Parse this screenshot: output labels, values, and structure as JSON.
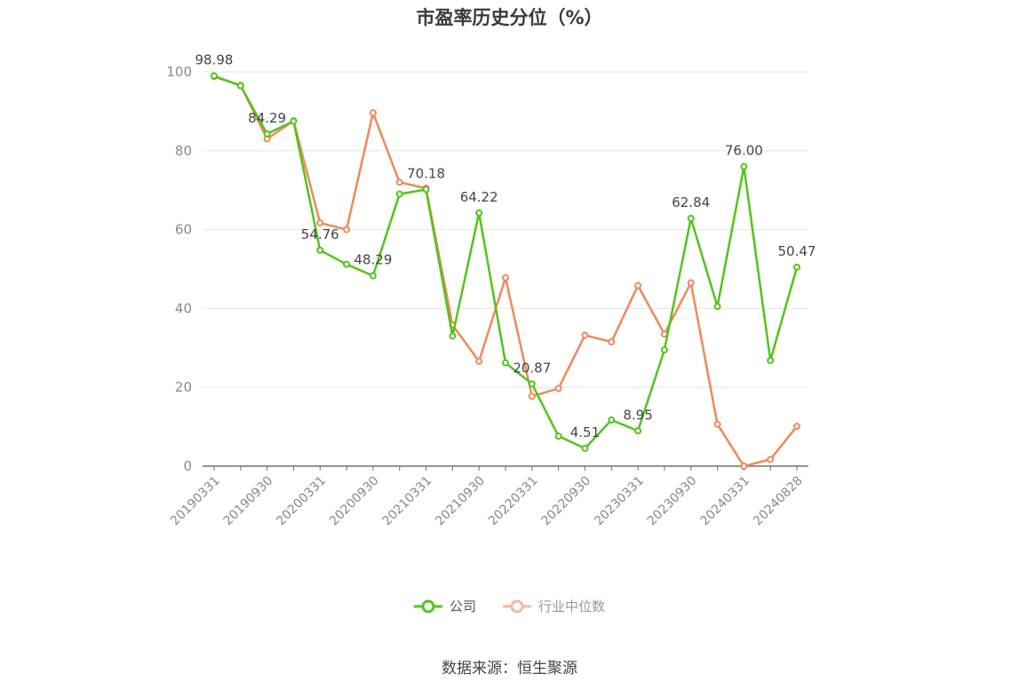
{
  "title": "市盈率历史分位（%）",
  "source": "数据来源：恒生聚源",
  "legend": [
    {
      "name": "公司",
      "color": "#52c41a"
    },
    {
      "name": "行业中位数",
      "color": "#f4b89f"
    }
  ],
  "chart_data": {
    "type": "line",
    "title": "市盈率历史分位（%）",
    "xlabel": "",
    "ylabel": "",
    "ylim": [
      0,
      100
    ],
    "yticks": [
      0,
      20,
      40,
      60,
      80,
      100
    ],
    "xtick_labels": [
      "20190331",
      "20190930",
      "20200331",
      "20200930",
      "20210331",
      "20210930",
      "20220331",
      "20220930",
      "20230331",
      "20230930",
      "20240331",
      "20240828"
    ],
    "x": [
      "20190331",
      "20190630",
      "20190930",
      "20191231",
      "20200331",
      "20200630",
      "20200930",
      "20201231",
      "20210331",
      "20210630",
      "20210930",
      "20211231",
      "20220331",
      "20220630",
      "20220930",
      "20221231",
      "20230331",
      "20230630",
      "20230930",
      "20231231",
      "20240331",
      "20240630",
      "20240828"
    ],
    "series": [
      {
        "name": "公司",
        "color": "#52c41a",
        "values": [
          98.98,
          96.5,
          84.29,
          87.5,
          54.76,
          51.2,
          48.29,
          69.0,
          70.18,
          33.0,
          64.22,
          26.2,
          20.87,
          7.6,
          4.51,
          11.7,
          8.95,
          29.5,
          62.84,
          40.5,
          76.0,
          26.8,
          50.47
        ],
        "labeled_points": [
          {
            "index": 0,
            "label": "98.98"
          },
          {
            "index": 2,
            "label": "84.29"
          },
          {
            "index": 4,
            "label": "54.76"
          },
          {
            "index": 6,
            "label": "48.29"
          },
          {
            "index": 8,
            "label": "70.18"
          },
          {
            "index": 10,
            "label": "64.22"
          },
          {
            "index": 12,
            "label": "20.87"
          },
          {
            "index": 14,
            "label": "4.51"
          },
          {
            "index": 16,
            "label": "8.95"
          },
          {
            "index": 18,
            "label": "62.84"
          },
          {
            "index": 20,
            "label": "76.00"
          },
          {
            "index": 22,
            "label": "50.47"
          }
        ]
      },
      {
        "name": "行业中位数",
        "color": "#f0885a",
        "values": [
          98.8,
          96.6,
          83.0,
          87.6,
          61.7,
          60.0,
          89.6,
          72.0,
          70.5,
          35.8,
          26.6,
          47.8,
          17.7,
          19.7,
          33.2,
          31.5,
          45.8,
          33.5,
          46.5,
          10.6,
          0.0,
          1.7,
          10.1
        ]
      }
    ],
    "grid": true,
    "legend_position": "bottom"
  }
}
